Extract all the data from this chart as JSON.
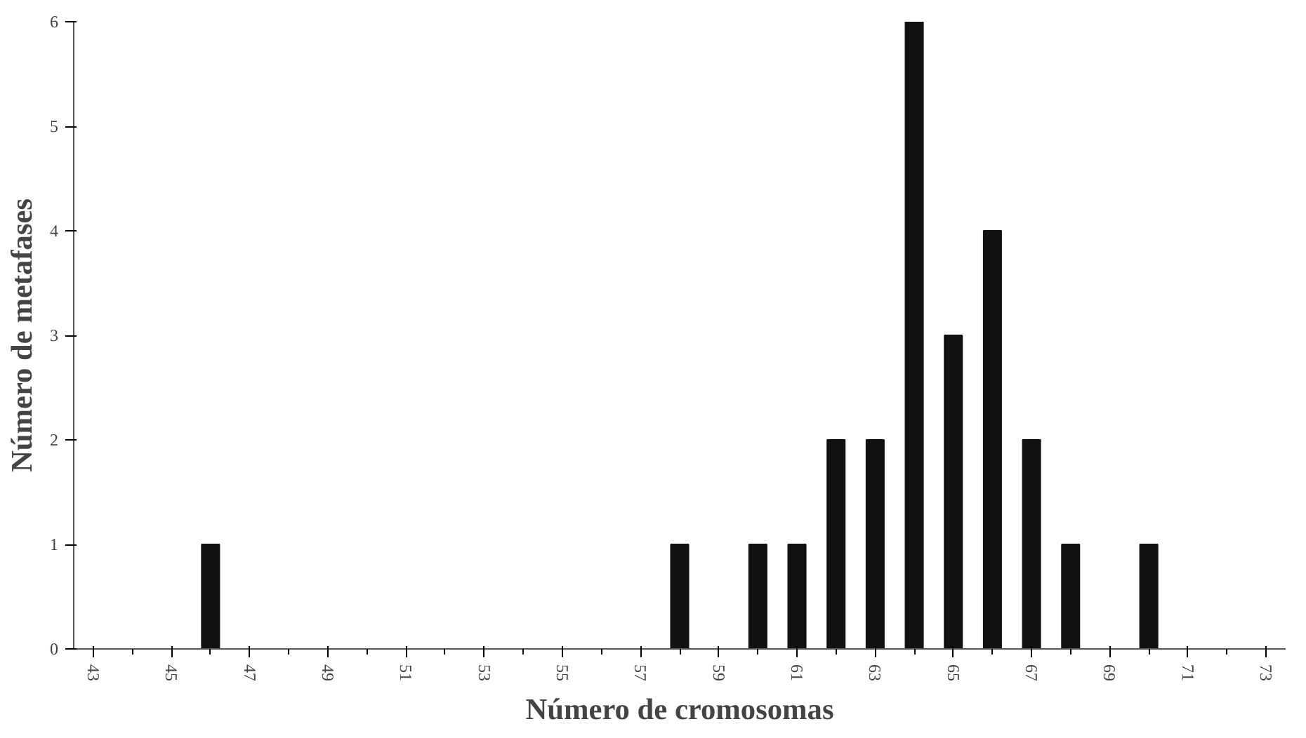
{
  "chart_data": {
    "type": "bar",
    "xlabel": "Número de cromosomas",
    "ylabel": "Número de metafases",
    "categories": [
      "43",
      null,
      "45",
      null,
      "47",
      null,
      "49",
      null,
      "51",
      null,
      "53",
      null,
      "55",
      null,
      "57",
      null,
      "59",
      null,
      "61",
      null,
      "63",
      null,
      "65",
      null,
      "67",
      null,
      "69",
      null,
      "71",
      null,
      "73"
    ],
    "values": [
      0,
      0,
      0,
      1,
      0,
      0,
      0,
      0,
      0,
      0,
      0,
      0,
      0,
      0,
      0,
      1,
      0,
      1,
      1,
      2,
      2,
      6,
      3,
      4,
      2,
      1,
      0,
      1,
      0,
      0,
      0
    ],
    "color": "#111111",
    "ylim": [
      0,
      6
    ],
    "yticks": [
      0,
      1,
      2,
      3,
      4,
      5,
      6
    ],
    "grid": false
  }
}
